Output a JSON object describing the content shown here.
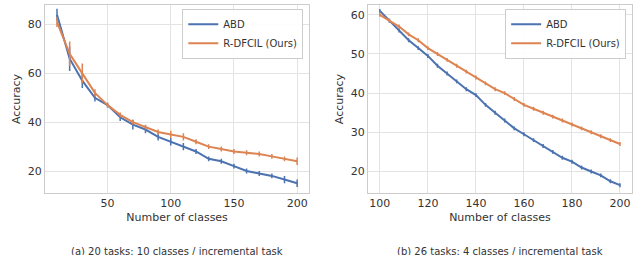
{
  "chart_data": [
    {
      "type": "line",
      "caption": "(a) 20 tasks: 10 classes / incremental task",
      "xlabel": "Number of classes",
      "ylabel": "Accuracy",
      "x": [
        10,
        20,
        30,
        40,
        50,
        60,
        70,
        80,
        90,
        100,
        110,
        120,
        130,
        140,
        150,
        160,
        170,
        180,
        190,
        200
      ],
      "series": [
        {
          "name": "ABD",
          "color": "#4c72b0",
          "values": [
            84,
            66,
            57,
            50,
            47,
            42,
            39,
            37,
            34,
            32,
            30,
            28,
            25,
            24,
            22,
            20,
            19,
            18,
            16.5,
            15
          ],
          "error": [
            2.5,
            5,
            3,
            1.5,
            1,
            1.5,
            2,
            1.5,
            1.5,
            1.5,
            1.5,
            1,
            1,
            1,
            1,
            1,
            1,
            1,
            1.5,
            1.5
          ]
        },
        {
          "name": "R-DFCIL (Ours)",
          "color": "#dd8452",
          "values": [
            81,
            68,
            60,
            52,
            47,
            43,
            40,
            38,
            36,
            35,
            34,
            32,
            30,
            29,
            28,
            27.5,
            27,
            26,
            25,
            24
          ],
          "error": [
            2,
            5,
            4,
            1.5,
            1,
            1,
            1,
            1,
            1,
            1.5,
            1.5,
            1,
            1,
            1,
            1,
            1,
            1,
            1,
            1,
            1.5
          ]
        }
      ],
      "xlim": [
        0.5,
        209.5
      ],
      "xticks": [
        50,
        100,
        150,
        200
      ],
      "ylim": [
        11,
        88
      ],
      "yticks": [
        20,
        40,
        60,
        80
      ],
      "grid": true,
      "legend": "top right"
    },
    {
      "type": "line",
      "caption": "(b) 26 tasks: 4 classes / incremental task",
      "xlabel": "Number of classes",
      "ylabel": "Accuracy",
      "x": [
        100,
        104,
        108,
        112,
        116,
        120,
        124,
        128,
        132,
        136,
        140,
        144,
        148,
        152,
        156,
        160,
        164,
        168,
        172,
        176,
        180,
        184,
        188,
        192,
        196,
        200
      ],
      "series": [
        {
          "name": "ABD",
          "color": "#4c72b0",
          "values": [
            61,
            58.5,
            56,
            53.5,
            51.5,
            49.5,
            47,
            45,
            43,
            41,
            39.5,
            37,
            35,
            33,
            31,
            29.5,
            28,
            26.5,
            25,
            23.5,
            22.5,
            21,
            20,
            19,
            17.5,
            16.5
          ],
          "error": [
            0.5,
            0.5,
            0.5,
            0.5,
            0.5,
            0.5,
            0.5,
            0.5,
            0.5,
            0.5,
            0.5,
            0.5,
            0.5,
            0.5,
            0.5,
            0.5,
            0.5,
            0.5,
            0.5,
            0.5,
            0.5,
            0.5,
            0.5,
            0.5,
            0.5,
            0.5
          ]
        },
        {
          "name": "R-DFCIL (Ours)",
          "color": "#dd8452",
          "values": [
            60,
            58.5,
            57,
            55,
            53.5,
            51.5,
            50,
            48.5,
            47,
            45.5,
            44,
            42.5,
            41,
            40,
            38.5,
            37,
            36,
            35,
            34,
            33,
            32,
            31,
            30,
            29,
            28,
            27
          ],
          "error": [
            0.5,
            0.5,
            0.5,
            0.5,
            0.5,
            0.5,
            0.5,
            0.5,
            0.5,
            0.5,
            0.5,
            0.5,
            0.5,
            0.5,
            0.5,
            0.5,
            0.5,
            0.5,
            0.5,
            0.5,
            0.5,
            0.5,
            0.5,
            0.5,
            0.5,
            0.5
          ]
        }
      ],
      "xlim": [
        95,
        205
      ],
      "xticks": [
        100,
        120,
        140,
        160,
        180,
        200
      ],
      "ylim": [
        14.5,
        62.5
      ],
      "yticks": [
        20,
        30,
        40,
        50,
        60
      ],
      "grid": true,
      "legend": "top right"
    }
  ]
}
